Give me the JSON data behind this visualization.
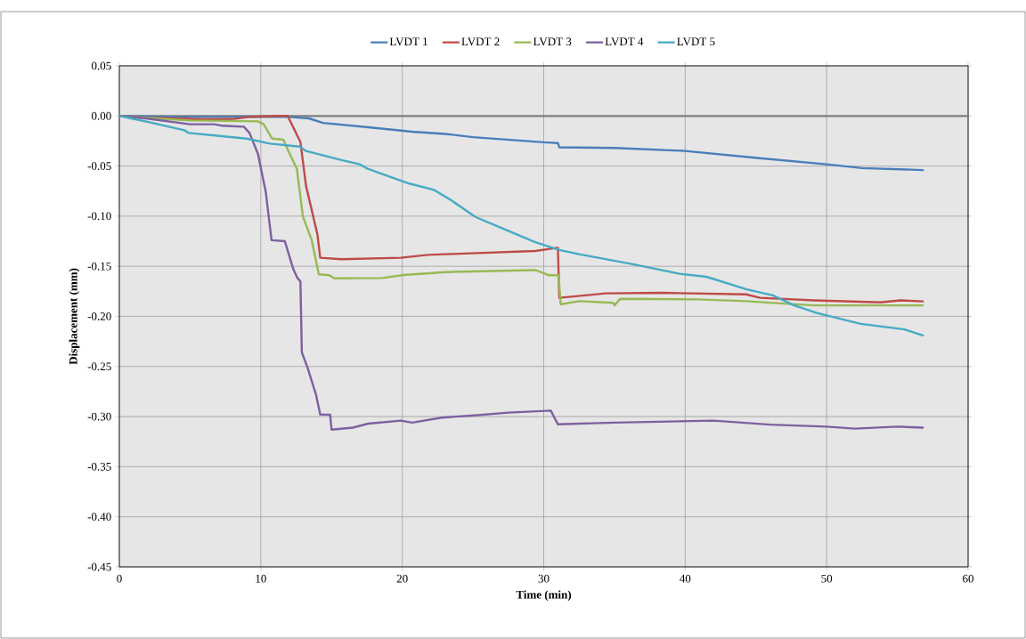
{
  "chart_data": {
    "type": "line",
    "xlabel": "Time (min)",
    "ylabel": "Displacement (mm)",
    "xlim": [
      0,
      60
    ],
    "ylim": [
      -0.45,
      0.05
    ],
    "xticks": [
      0,
      10,
      20,
      30,
      40,
      50,
      60
    ],
    "yticks": [
      {
        "value": 0.05,
        "label": "0.05"
      },
      {
        "value": 0,
        "label": "0.00"
      },
      {
        "value": -0.05,
        "label": "-0.05"
      },
      {
        "value": -0.1,
        "label": "-0.10"
      },
      {
        "value": -0.15,
        "label": "-0.15"
      },
      {
        "value": -0.2,
        "label": "-0.20"
      },
      {
        "value": -0.25,
        "label": "-0.25"
      },
      {
        "value": -0.3,
        "label": "-0.30"
      },
      {
        "value": -0.35,
        "label": "-0.35"
      },
      {
        "value": -0.4,
        "label": "-0.40"
      },
      {
        "value": -0.45,
        "label": "-0.45"
      }
    ],
    "grid": true,
    "legend": "top",
    "marker": "none",
    "line_style": "solid",
    "ref_lines": [
      {
        "axis": "y",
        "value": 0,
        "color": "#808080"
      }
    ],
    "series": [
      {
        "name": "LVDT 1",
        "color": "#4a7ebb",
        "x": [
          0,
          4,
          8,
          12,
          13.4,
          14.4,
          17.6,
          20.7,
          23.05,
          25,
          30,
          31,
          31.1,
          35,
          40,
          45.1,
          50,
          52.5,
          56.8
        ],
        "values": [
          0,
          -0.001,
          -0.001,
          -0.001,
          -0.0024,
          -0.007,
          -0.0113,
          -0.0157,
          -0.0179,
          -0.0212,
          -0.0263,
          -0.027,
          -0.0313,
          -0.032,
          -0.0349,
          -0.0419,
          -0.0483,
          -0.052,
          -0.054
        ]
      },
      {
        "name": "LVDT 2",
        "color": "#be4b48",
        "x": [
          0,
          1.85,
          6,
          8.1,
          9.2,
          11.2,
          11.9,
          12.8,
          13.2,
          14,
          14.2,
          15.7,
          19.9,
          21.8,
          23.05,
          29.4,
          31,
          31.1,
          34.4,
          38.4,
          44.3,
          45.3,
          49.1,
          53.8,
          55.2,
          56.8
        ],
        "values": [
          0,
          -0.0018,
          -0.0033,
          -0.003,
          -0.001,
          0,
          0,
          -0.026,
          -0.07,
          -0.118,
          -0.1415,
          -0.143,
          -0.1415,
          -0.1386,
          -0.138,
          -0.1347,
          -0.1315,
          -0.1815,
          -0.177,
          -0.1765,
          -0.178,
          -0.1815,
          -0.184,
          -0.186,
          -0.184,
          -0.185
        ]
      },
      {
        "name": "LVDT 3",
        "color": "#98b954",
        "x": [
          0,
          2,
          5,
          9.8,
          10.2,
          10.8,
          11.6,
          11.9,
          12.55,
          12.97,
          13.6,
          14.1,
          14.85,
          15.2,
          18.6,
          20.1,
          23.05,
          29.4,
          30.4,
          31.05,
          31.2,
          32.5,
          34.9,
          35,
          35.4,
          40.8,
          44.3,
          46.7,
          49.1,
          56.8
        ],
        "values": [
          0,
          -0.002,
          -0.0045,
          -0.0054,
          -0.0083,
          -0.0226,
          -0.0237,
          -0.0335,
          -0.0528,
          -0.1,
          -0.124,
          -0.158,
          -0.159,
          -0.162,
          -0.1617,
          -0.1587,
          -0.1558,
          -0.1538,
          -0.159,
          -0.159,
          -0.188,
          -0.1848,
          -0.1865,
          -0.189,
          -0.1825,
          -0.183,
          -0.1848,
          -0.187,
          -0.189,
          -0.189
        ]
      },
      {
        "name": "LVDT 4",
        "color": "#7d60a0",
        "x": [
          0,
          1.85,
          5,
          6.7,
          7.3,
          8.8,
          9.2,
          9.8,
          10.35,
          10.76,
          11.7,
          12.3,
          12.6,
          12.8,
          12.9,
          13.3,
          13.9,
          14.2,
          14.9,
          15,
          16.5,
          17.6,
          19.9,
          20.7,
          22.8,
          24.9,
          27.5,
          30.5,
          31,
          35,
          42,
          46,
          50,
          52,
          55,
          56.8
        ],
        "values": [
          0,
          -0.0024,
          -0.0083,
          -0.0083,
          -0.0098,
          -0.0107,
          -0.017,
          -0.038,
          -0.076,
          -0.124,
          -0.125,
          -0.153,
          -0.162,
          -0.165,
          -0.236,
          -0.251,
          -0.278,
          -0.298,
          -0.298,
          -0.313,
          -0.311,
          -0.307,
          -0.304,
          -0.306,
          -0.301,
          -0.299,
          -0.296,
          -0.294,
          -0.3077,
          -0.306,
          -0.304,
          -0.308,
          -0.31,
          -0.312,
          -0.31,
          -0.311
        ]
      },
      {
        "name": "LVDT 5",
        "color": "#46aac5",
        "x": [
          0,
          2.27,
          4.6,
          4.9,
          7.1,
          9,
          10.65,
          12.75,
          13.2,
          15.7,
          16.95,
          17.6,
          18.6,
          20.5,
          22.2,
          23.45,
          25.2,
          29.4,
          31.1,
          32.5,
          36.3,
          39.6,
          41.5,
          44.35,
          46.2,
          47.7,
          49.3,
          52.4,
          55.5,
          56.8
        ],
        "values": [
          0,
          -0.0068,
          -0.0143,
          -0.017,
          -0.02,
          -0.0226,
          -0.0276,
          -0.0306,
          -0.035,
          -0.044,
          -0.048,
          -0.053,
          -0.058,
          -0.0675,
          -0.0735,
          -0.084,
          -0.101,
          -0.126,
          -0.1338,
          -0.138,
          -0.148,
          -0.1575,
          -0.1605,
          -0.173,
          -0.179,
          -0.189,
          -0.1965,
          -0.2075,
          -0.213,
          -0.219
        ]
      }
    ]
  }
}
